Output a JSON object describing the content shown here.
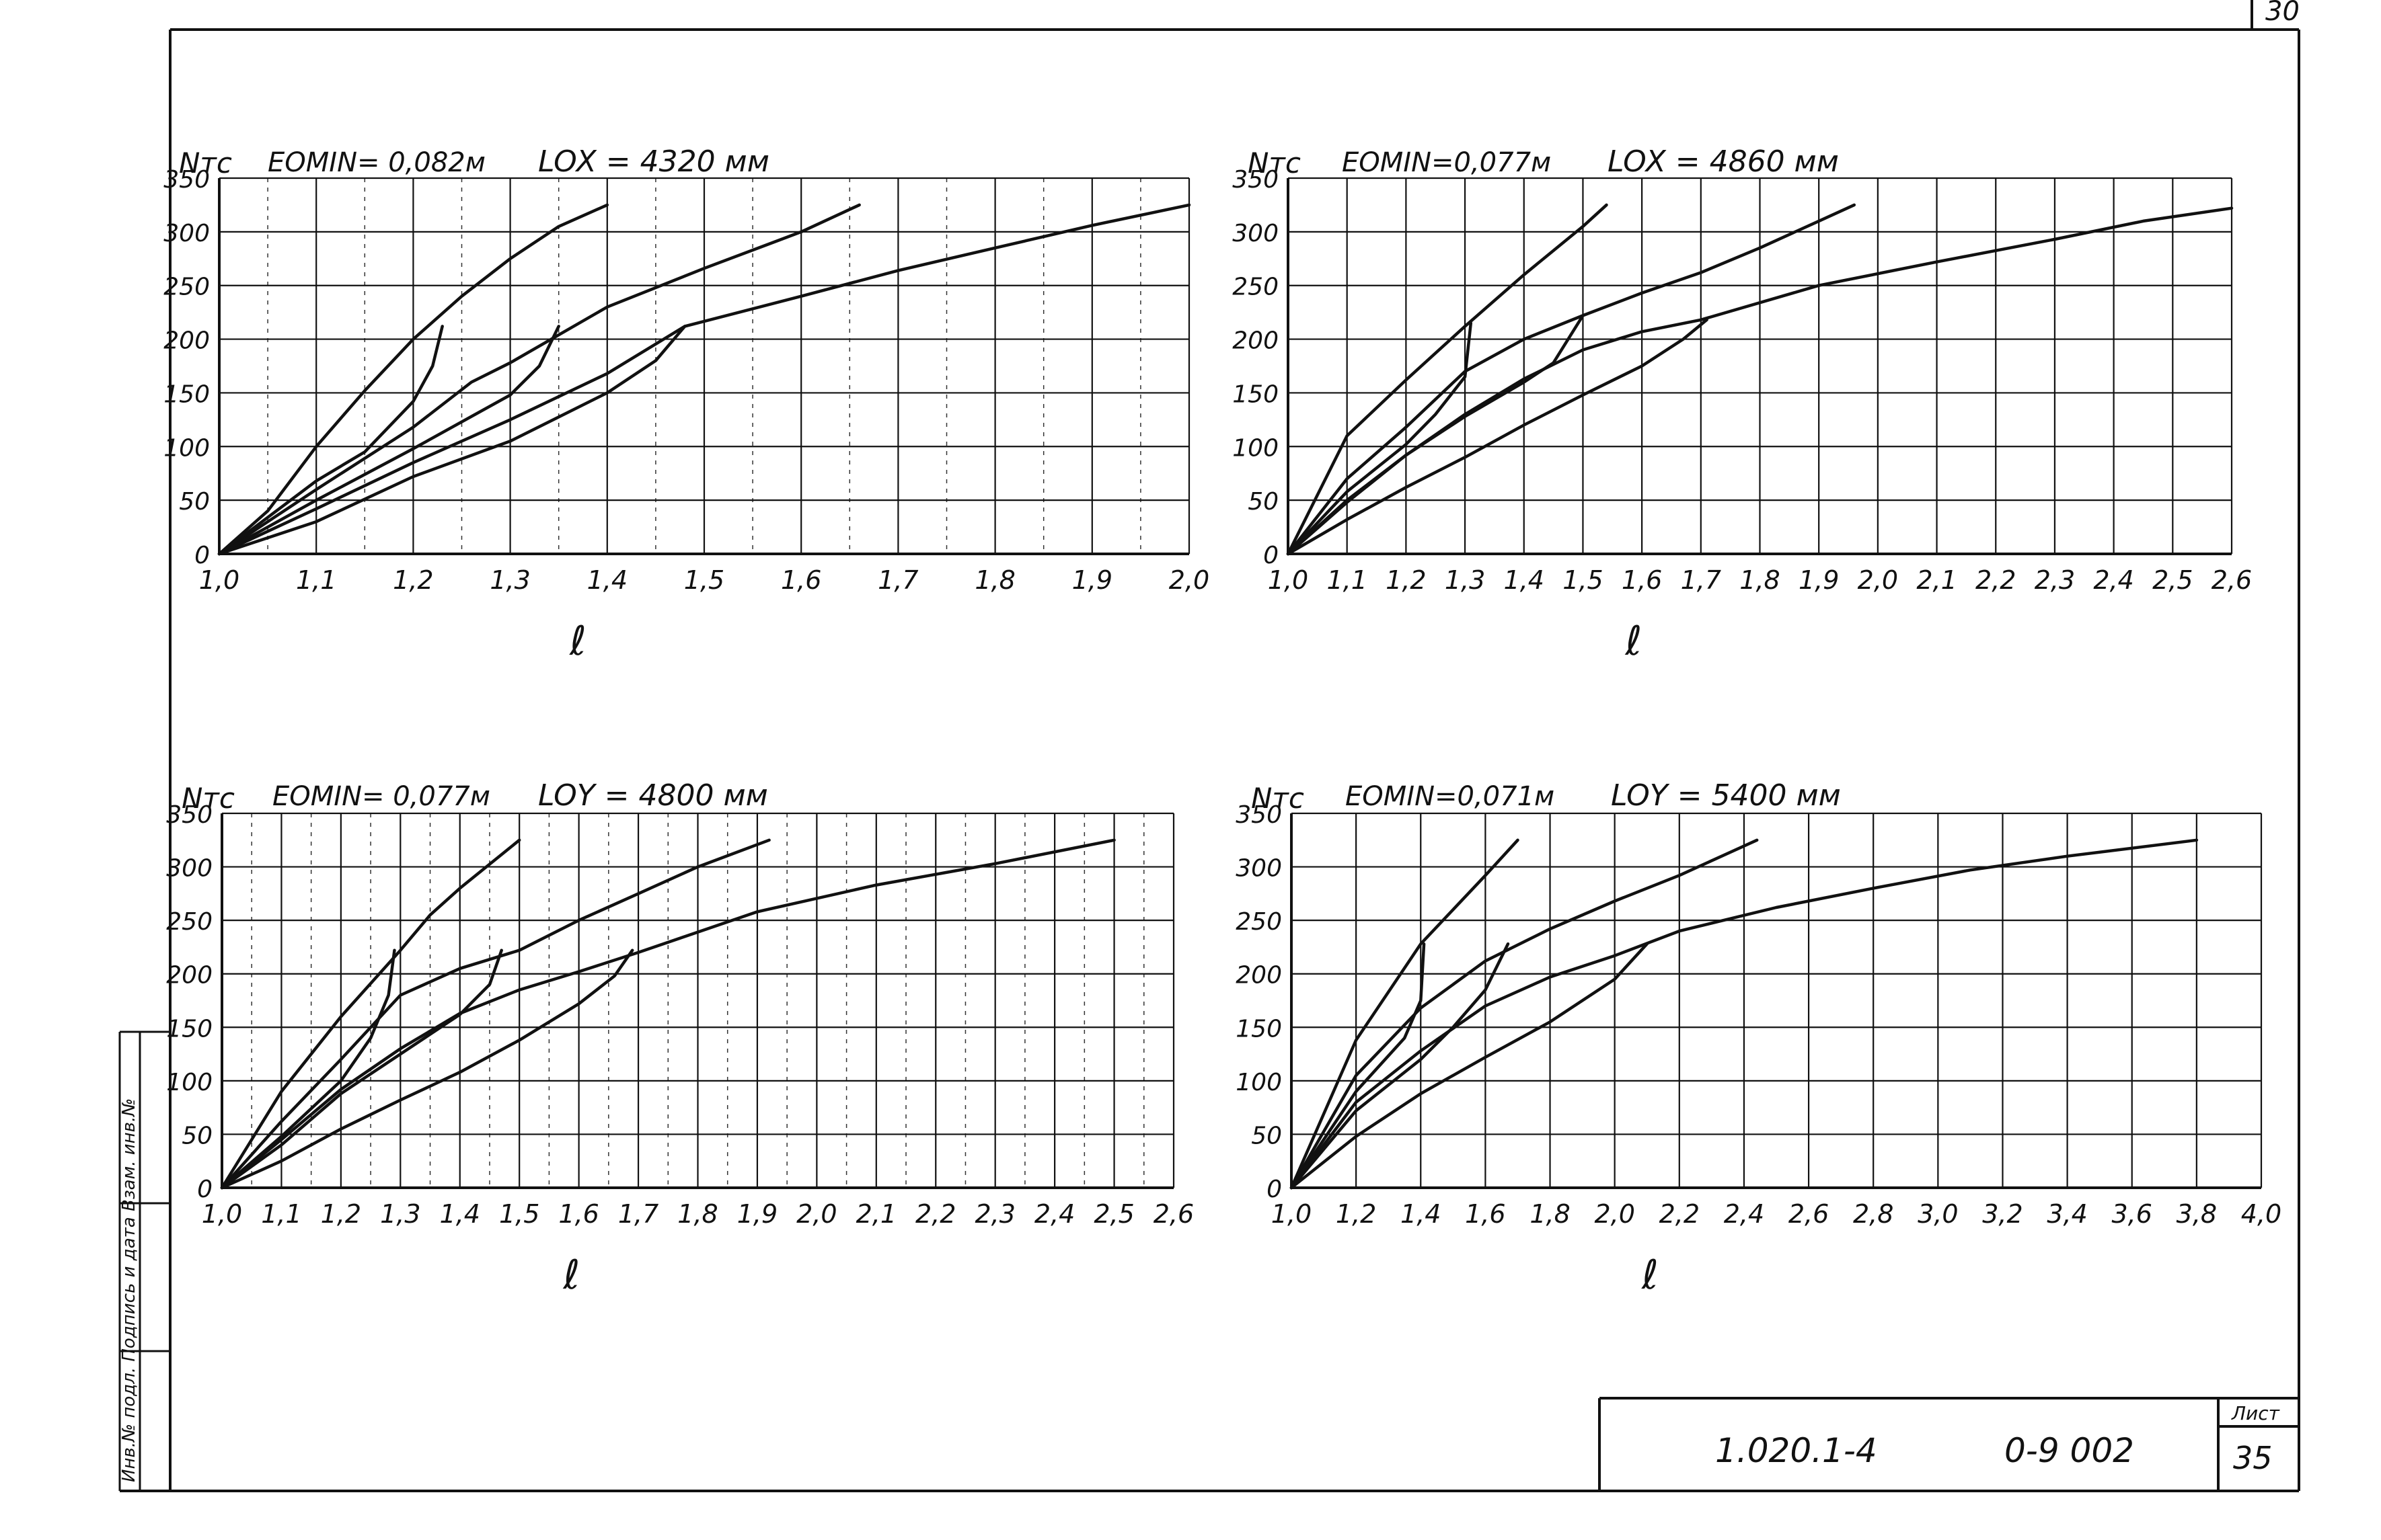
{
  "sheet": {
    "page_number_top": "30",
    "stamp_vertical_text": "Инв.№ подл.   Подпись и дата   Взам. инв.№",
    "title_block": {
      "doc_code": "1.020.1-4",
      "doc_number": "0-9 002",
      "sheet_label": "Лист",
      "sheet_number": "35"
    }
  },
  "chart_data": [
    {
      "type": "line",
      "id": "tl",
      "ylabel": "Nтс",
      "xlabel": "ℓ",
      "param1": "EOMIN= 0,082м",
      "param2": "LOX = 4320 мм",
      "x_ticks": [
        "1,0",
        "1,1",
        "1,2",
        "1,3",
        "1,4",
        "1,5",
        "1,6",
        "1,7",
        "1,8",
        "1,9",
        "2,0"
      ],
      "y_ticks": [
        "0",
        "50",
        "100",
        "150",
        "200",
        "250",
        "300",
        "350"
      ],
      "xlim": [
        1.0,
        2.0
      ],
      "ylim": [
        0,
        350
      ],
      "minor_x_step": 0.05,
      "curves": [
        [
          [
            1.0,
            0
          ],
          [
            1.05,
            40
          ],
          [
            1.1,
            100
          ],
          [
            1.15,
            152
          ],
          [
            1.2,
            200
          ],
          [
            1.25,
            240
          ],
          [
            1.3,
            275
          ],
          [
            1.35,
            305
          ],
          [
            1.4,
            325
          ]
        ],
        [
          [
            1.0,
            0
          ],
          [
            1.1,
            60
          ],
          [
            1.2,
            118
          ],
          [
            1.26,
            160
          ],
          [
            1.3,
            178
          ],
          [
            1.4,
            230
          ],
          [
            1.5,
            266
          ],
          [
            1.6,
            300
          ],
          [
            1.66,
            325
          ]
        ],
        [
          [
            1.0,
            0
          ],
          [
            1.1,
            42
          ],
          [
            1.2,
            85
          ],
          [
            1.3,
            125
          ],
          [
            1.4,
            168
          ],
          [
            1.48,
            212
          ],
          [
            1.6,
            240
          ],
          [
            1.7,
            264
          ],
          [
            1.8,
            285
          ],
          [
            1.9,
            306
          ],
          [
            2.0,
            325
          ]
        ],
        [
          [
            1.0,
            0
          ],
          [
            1.1,
            68
          ],
          [
            1.15,
            95
          ],
          [
            1.2,
            142
          ],
          [
            1.22,
            175
          ],
          [
            1.23,
            212
          ]
        ],
        [
          [
            1.0,
            0
          ],
          [
            1.1,
            50
          ],
          [
            1.2,
            98
          ],
          [
            1.3,
            148
          ],
          [
            1.33,
            175
          ],
          [
            1.35,
            212
          ]
        ],
        [
          [
            1.0,
            0
          ],
          [
            1.1,
            30
          ],
          [
            1.2,
            72
          ],
          [
            1.3,
            105
          ],
          [
            1.4,
            150
          ],
          [
            1.45,
            180
          ],
          [
            1.48,
            212
          ]
        ]
      ]
    },
    {
      "type": "line",
      "id": "tr",
      "ylabel": "Nтс",
      "xlabel": "ℓ",
      "param1": "EOMIN=0,077м",
      "param2": "LOX = 4860 мм",
      "x_ticks": [
        "1,0",
        "1,1",
        "1,2",
        "1,3",
        "1,4",
        "1,5",
        "1,6",
        "1,7",
        "1,8",
        "1,9",
        "2,0",
        "2,1",
        "2,2",
        "2,3",
        "2,4",
        "2,5",
        "2,6"
      ],
      "y_ticks": [
        "0",
        "50",
        "100",
        "150",
        "200",
        "250",
        "300",
        "350"
      ],
      "xlim": [
        1.0,
        2.6
      ],
      "ylim": [
        0,
        350
      ],
      "minor_x_step": 0,
      "curves": [
        [
          [
            1.0,
            0
          ],
          [
            1.1,
            110
          ],
          [
            1.2,
            162
          ],
          [
            1.3,
            212
          ],
          [
            1.4,
            260
          ],
          [
            1.5,
            305
          ],
          [
            1.54,
            325
          ]
        ],
        [
          [
            1.0,
            0
          ],
          [
            1.1,
            70
          ],
          [
            1.2,
            118
          ],
          [
            1.3,
            170
          ],
          [
            1.4,
            200
          ],
          [
            1.5,
            222
          ],
          [
            1.6,
            243
          ],
          [
            1.7,
            262
          ],
          [
            1.8,
            285
          ],
          [
            1.9,
            310
          ],
          [
            1.96,
            325
          ]
        ],
        [
          [
            1.0,
            0
          ],
          [
            1.1,
            50
          ],
          [
            1.2,
            92
          ],
          [
            1.3,
            130
          ],
          [
            1.4,
            163
          ],
          [
            1.5,
            190
          ],
          [
            1.6,
            207
          ],
          [
            1.7,
            218
          ],
          [
            1.9,
            250
          ],
          [
            2.1,
            272
          ],
          [
            2.3,
            293
          ],
          [
            2.45,
            310
          ],
          [
            2.6,
            322
          ]
        ],
        [
          [
            1.0,
            0
          ],
          [
            1.1,
            58
          ],
          [
            1.2,
            102
          ],
          [
            1.25,
            130
          ],
          [
            1.3,
            165
          ],
          [
            1.31,
            215
          ]
        ],
        [
          [
            1.0,
            0
          ],
          [
            1.1,
            48
          ],
          [
            1.2,
            92
          ],
          [
            1.3,
            128
          ],
          [
            1.4,
            160
          ],
          [
            1.45,
            178
          ],
          [
            1.5,
            222
          ]
        ],
        [
          [
            1.0,
            0
          ],
          [
            1.1,
            32
          ],
          [
            1.2,
            62
          ],
          [
            1.3,
            90
          ],
          [
            1.4,
            120
          ],
          [
            1.5,
            148
          ],
          [
            1.6,
            175
          ],
          [
            1.67,
            200
          ],
          [
            1.71,
            218
          ]
        ]
      ]
    },
    {
      "type": "line",
      "id": "bl",
      "ylabel": "Nтс",
      "xlabel": "ℓ",
      "param1": "EOMIN= 0,077м",
      "param2": "LOY = 4800 мм",
      "x_ticks": [
        "1,0",
        "1,1",
        "1,2",
        "1,3",
        "1,4",
        "1,5",
        "1,6",
        "1,7",
        "1,8",
        "1,9",
        "2,0",
        "2,1",
        "2,2",
        "2,3",
        "2,4",
        "2,5",
        "2,6"
      ],
      "y_ticks": [
        "0",
        "50",
        "100",
        "150",
        "200",
        "250",
        "300",
        "350"
      ],
      "xlim": [
        1.0,
        2.6
      ],
      "ylim": [
        0,
        350
      ],
      "minor_x_step": 0.05,
      "curves": [
        [
          [
            1.0,
            0
          ],
          [
            1.1,
            90
          ],
          [
            1.2,
            160
          ],
          [
            1.3,
            222
          ],
          [
            1.35,
            255
          ],
          [
            1.4,
            280
          ],
          [
            1.5,
            325
          ]
        ],
        [
          [
            1.0,
            0
          ],
          [
            1.1,
            62
          ],
          [
            1.2,
            120
          ],
          [
            1.3,
            180
          ],
          [
            1.4,
            205
          ],
          [
            1.5,
            222
          ],
          [
            1.6,
            250
          ],
          [
            1.7,
            275
          ],
          [
            1.8,
            300
          ],
          [
            1.92,
            325
          ]
        ],
        [
          [
            1.0,
            0
          ],
          [
            1.1,
            45
          ],
          [
            1.2,
            92
          ],
          [
            1.3,
            130
          ],
          [
            1.4,
            163
          ],
          [
            1.5,
            185
          ],
          [
            1.6,
            202
          ],
          [
            1.7,
            220
          ],
          [
            1.9,
            258
          ],
          [
            2.1,
            283
          ],
          [
            2.3,
            303
          ],
          [
            2.5,
            325
          ]
        ],
        [
          [
            1.0,
            0
          ],
          [
            1.1,
            48
          ],
          [
            1.2,
            100
          ],
          [
            1.25,
            140
          ],
          [
            1.28,
            180
          ],
          [
            1.29,
            222
          ]
        ],
        [
          [
            1.0,
            0
          ],
          [
            1.1,
            40
          ],
          [
            1.2,
            88
          ],
          [
            1.3,
            125
          ],
          [
            1.4,
            162
          ],
          [
            1.45,
            190
          ],
          [
            1.47,
            222
          ]
        ],
        [
          [
            1.0,
            0
          ],
          [
            1.1,
            25
          ],
          [
            1.2,
            55
          ],
          [
            1.3,
            82
          ],
          [
            1.4,
            108
          ],
          [
            1.5,
            138
          ],
          [
            1.6,
            172
          ],
          [
            1.66,
            198
          ],
          [
            1.69,
            222
          ]
        ]
      ]
    },
    {
      "type": "line",
      "id": "br",
      "ylabel": "Nтс",
      "xlabel": "ℓ",
      "param1": "EOMIN=0,071м",
      "param2": "LOY = 5400 мм",
      "x_ticks": [
        "1,0",
        "1,2",
        "1,4",
        "1,6",
        "1,8",
        "2,0",
        "2,2",
        "2,4",
        "2,6",
        "2,8",
        "3,0",
        "3,2",
        "3,4",
        "3,6",
        "3,8",
        "4,0"
      ],
      "y_ticks": [
        "0",
        "50",
        "100",
        "150",
        "200",
        "250",
        "300",
        "350"
      ],
      "xlim": [
        1.0,
        4.0
      ],
      "ylim": [
        0,
        350
      ],
      "minor_x_step": 0,
      "curves": [
        [
          [
            1.0,
            0
          ],
          [
            1.2,
            138
          ],
          [
            1.4,
            228
          ],
          [
            1.6,
            292
          ],
          [
            1.7,
            325
          ]
        ],
        [
          [
            1.0,
            0
          ],
          [
            1.2,
            105
          ],
          [
            1.4,
            168
          ],
          [
            1.6,
            212
          ],
          [
            1.8,
            242
          ],
          [
            2.0,
            268
          ],
          [
            2.2,
            292
          ],
          [
            2.44,
            325
          ]
        ],
        [
          [
            1.0,
            0
          ],
          [
            1.2,
            80
          ],
          [
            1.4,
            128
          ],
          [
            1.6,
            170
          ],
          [
            1.8,
            197
          ],
          [
            2.0,
            217
          ],
          [
            2.2,
            240
          ],
          [
            2.5,
            262
          ],
          [
            2.8,
            280
          ],
          [
            3.1,
            297
          ],
          [
            3.4,
            310
          ],
          [
            3.8,
            325
          ]
        ],
        [
          [
            1.0,
            0
          ],
          [
            1.2,
            90
          ],
          [
            1.35,
            140
          ],
          [
            1.4,
            175
          ],
          [
            1.41,
            228
          ]
        ],
        [
          [
            1.0,
            0
          ],
          [
            1.2,
            72
          ],
          [
            1.4,
            120
          ],
          [
            1.5,
            150
          ],
          [
            1.6,
            185
          ],
          [
            1.67,
            228
          ]
        ],
        [
          [
            1.0,
            0
          ],
          [
            1.2,
            48
          ],
          [
            1.4,
            88
          ],
          [
            1.6,
            122
          ],
          [
            1.8,
            155
          ],
          [
            2.0,
            195
          ],
          [
            2.1,
            228
          ]
        ]
      ]
    }
  ]
}
